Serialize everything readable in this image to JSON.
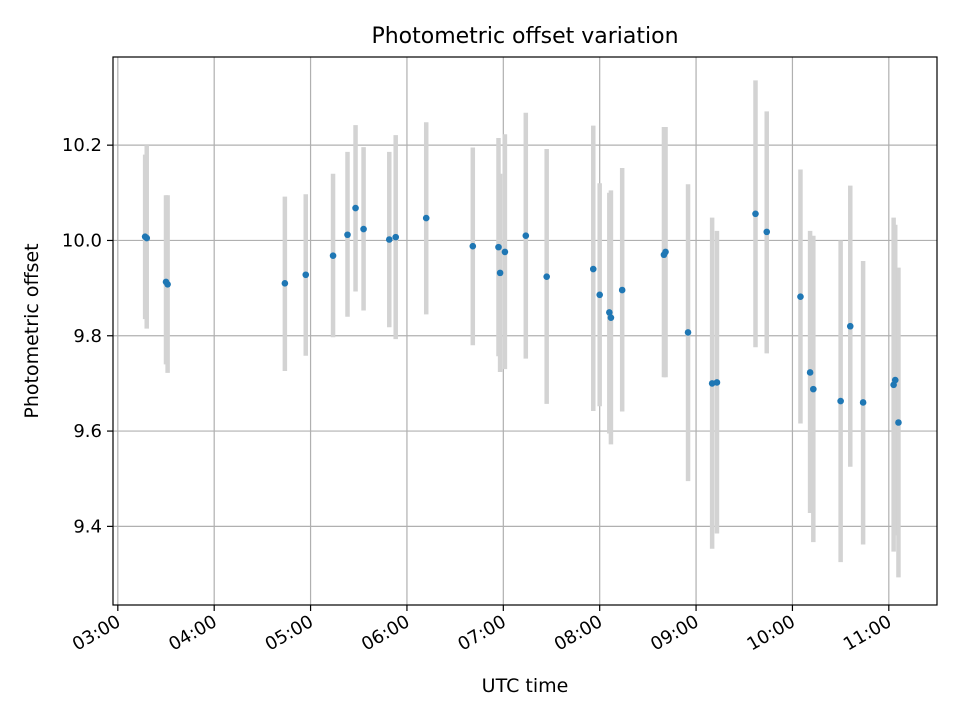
{
  "chart_data": {
    "type": "scatter",
    "title": "Photometric offset variation",
    "xlabel": "UTC time",
    "ylabel": "Photometric offset",
    "grid": true,
    "xlim": [
      "02:57",
      "11:30"
    ],
    "ylim": [
      9.235,
      10.385
    ],
    "x_ticks": [
      "03:00",
      "04:00",
      "05:00",
      "06:00",
      "07:00",
      "08:00",
      "09:00",
      "10:00",
      "11:00"
    ],
    "y_ticks": [
      9.4,
      9.6,
      9.8,
      10.0,
      10.2
    ],
    "y_tick_labels": [
      "9.4",
      "9.6",
      "9.8",
      "10.0",
      "10.2"
    ],
    "colors": {
      "marker": "#1f77b4",
      "errorbar": "#d3d3d3",
      "grid": "#b0b0b0"
    },
    "series": [
      {
        "points": [
          {
            "x": "03:17",
            "y": 10.008,
            "err_low": 9.835,
            "err_high": 10.18
          },
          {
            "x": "03:18",
            "y": 10.005,
            "err_low": 9.815,
            "err_high": 10.2
          },
          {
            "x": "03:30",
            "y": 9.913,
            "err_low": 9.74,
            "err_high": 10.095
          },
          {
            "x": "03:31",
            "y": 9.908,
            "err_low": 9.722,
            "err_high": 10.095
          },
          {
            "x": "04:44",
            "y": 9.91,
            "err_low": 9.726,
            "err_high": 10.092
          },
          {
            "x": "04:57",
            "y": 9.928,
            "err_low": 9.758,
            "err_high": 10.097
          },
          {
            "x": "05:14",
            "y": 9.968,
            "err_low": 9.797,
            "err_high": 10.14
          },
          {
            "x": "05:23",
            "y": 10.012,
            "err_low": 9.84,
            "err_high": 10.186
          },
          {
            "x": "05:28",
            "y": 10.068,
            "err_low": 9.893,
            "err_high": 10.242
          },
          {
            "x": "05:33",
            "y": 10.024,
            "err_low": 9.853,
            "err_high": 10.196
          },
          {
            "x": "05:49",
            "y": 10.002,
            "err_low": 9.818,
            "err_high": 10.186
          },
          {
            "x": "05:53",
            "y": 10.007,
            "err_low": 9.793,
            "err_high": 10.221
          },
          {
            "x": "06:12",
            "y": 10.047,
            "err_low": 9.845,
            "err_high": 10.248
          },
          {
            "x": "06:41",
            "y": 9.988,
            "err_low": 9.78,
            "err_high": 10.195
          },
          {
            "x": "06:57",
            "y": 9.986,
            "err_low": 9.757,
            "err_high": 10.215
          },
          {
            "x": "06:58",
            "y": 9.932,
            "err_low": 9.724,
            "err_high": 10.14
          },
          {
            "x": "07:01",
            "y": 9.976,
            "err_low": 9.73,
            "err_high": 10.223
          },
          {
            "x": "07:14",
            "y": 10.01,
            "err_low": 9.752,
            "err_high": 10.268
          },
          {
            "x": "07:27",
            "y": 9.924,
            "err_low": 9.657,
            "err_high": 10.192
          },
          {
            "x": "07:56",
            "y": 9.94,
            "err_low": 9.642,
            "err_high": 10.241
          },
          {
            "x": "08:00",
            "y": 9.886,
            "err_low": 9.652,
            "err_high": 10.12
          },
          {
            "x": "08:06",
            "y": 9.849,
            "err_low": 9.595,
            "err_high": 10.1
          },
          {
            "x": "08:07",
            "y": 9.838,
            "err_low": 9.572,
            "err_high": 10.105
          },
          {
            "x": "08:14",
            "y": 9.896,
            "err_low": 9.641,
            "err_high": 10.152
          },
          {
            "x": "08:40",
            "y": 9.97,
            "err_low": 9.713,
            "err_high": 10.238
          },
          {
            "x": "08:41",
            "y": 9.976,
            "err_low": 9.713,
            "err_high": 10.238
          },
          {
            "x": "08:55",
            "y": 9.807,
            "err_low": 9.495,
            "err_high": 10.118
          },
          {
            "x": "09:10",
            "y": 9.7,
            "err_low": 9.353,
            "err_high": 10.048
          },
          {
            "x": "09:13",
            "y": 9.702,
            "err_low": 9.385,
            "err_high": 10.02
          },
          {
            "x": "09:37",
            "y": 10.056,
            "err_low": 9.776,
            "err_high": 10.336
          },
          {
            "x": "09:44",
            "y": 10.018,
            "err_low": 9.763,
            "err_high": 10.271
          },
          {
            "x": "10:05",
            "y": 9.882,
            "err_low": 9.616,
            "err_high": 10.149
          },
          {
            "x": "10:11",
            "y": 9.723,
            "err_low": 9.428,
            "err_high": 10.02
          },
          {
            "x": "10:13",
            "y": 9.688,
            "err_low": 9.367,
            "err_high": 10.01
          },
          {
            "x": "10:30",
            "y": 9.663,
            "err_low": 9.325,
            "err_high": 10.0
          },
          {
            "x": "10:36",
            "y": 9.82,
            "err_low": 9.525,
            "err_high": 10.115
          },
          {
            "x": "10:44",
            "y": 9.66,
            "err_low": 9.362,
            "err_high": 9.957
          },
          {
            "x": "11:03",
            "y": 9.697,
            "err_low": 9.347,
            "err_high": 10.048
          },
          {
            "x": "11:04",
            "y": 9.707,
            "err_low": 9.381,
            "err_high": 10.033
          },
          {
            "x": "11:06",
            "y": 9.618,
            "err_low": 9.293,
            "err_high": 9.943
          }
        ]
      }
    ]
  }
}
